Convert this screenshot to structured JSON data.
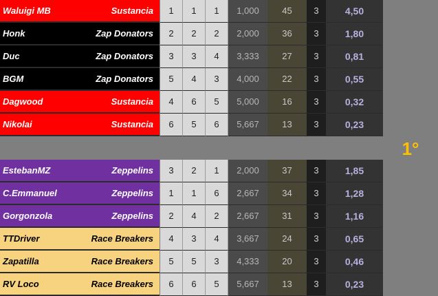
{
  "colors": {
    "sustancia": "#ff0000",
    "zap_donators": "#000000",
    "zeppelins": "#7030a0",
    "race_breakers": "#f7d27f",
    "place_accent": "#ffc000",
    "score_text": "#b9b0e0"
  },
  "place_label": "1°",
  "group_a": [
    {
      "driver": "Waluigi MB",
      "team": "Sustancia",
      "style": "red",
      "r1": "1",
      "r2": "1",
      "r3": "1",
      "avg": "1,000",
      "pts": "45",
      "cnt": "3",
      "score": "4,50"
    },
    {
      "driver": "Honk",
      "team": "Zap Donators",
      "style": "black",
      "r1": "2",
      "r2": "2",
      "r3": "2",
      "avg": "2,000",
      "pts": "36",
      "cnt": "3",
      "score": "1,80"
    },
    {
      "driver": "Duc",
      "team": "Zap Donators",
      "style": "black",
      "r1": "3",
      "r2": "3",
      "r3": "4",
      "avg": "3,333",
      "pts": "27",
      "cnt": "3",
      "score": "0,81"
    },
    {
      "driver": "BGM",
      "team": "Zap Donators",
      "style": "black",
      "r1": "5",
      "r2": "4",
      "r3": "3",
      "avg": "4,000",
      "pts": "22",
      "cnt": "3",
      "score": "0,55"
    },
    {
      "driver": "Dagwood",
      "team": "Sustancia",
      "style": "red",
      "r1": "4",
      "r2": "6",
      "r3": "5",
      "avg": "5,000",
      "pts": "16",
      "cnt": "3",
      "score": "0,32"
    },
    {
      "driver": "Nikolai",
      "team": "Sustancia",
      "style": "red",
      "r1": "6",
      "r2": "5",
      "r3": "6",
      "avg": "5,667",
      "pts": "13",
      "cnt": "3",
      "score": "0,23"
    }
  ],
  "group_b": [
    {
      "driver": "EstebanMZ",
      "team": "Zeppelins",
      "style": "purple",
      "r1": "3",
      "r2": "2",
      "r3": "1",
      "avg": "2,000",
      "pts": "37",
      "cnt": "3",
      "score": "1,85"
    },
    {
      "driver": "C.Emmanuel",
      "team": "Zeppelins",
      "style": "purple",
      "r1": "1",
      "r2": "1",
      "r3": "6",
      "avg": "2,667",
      "pts": "34",
      "cnt": "3",
      "score": "1,28"
    },
    {
      "driver": "Gorgonzola",
      "team": "Zeppelins",
      "style": "purple",
      "r1": "2",
      "r2": "4",
      "r3": "2",
      "avg": "2,667",
      "pts": "31",
      "cnt": "3",
      "score": "1,16"
    },
    {
      "driver": "TTDriver",
      "team": "Race Breakers",
      "style": "gold",
      "r1": "4",
      "r2": "3",
      "r3": "4",
      "avg": "3,667",
      "pts": "24",
      "cnt": "3",
      "score": "0,65"
    },
    {
      "driver": "Zapatilla",
      "team": "Race Breakers",
      "style": "gold",
      "r1": "5",
      "r2": "5",
      "r3": "3",
      "avg": "4,333",
      "pts": "20",
      "cnt": "3",
      "score": "0,46"
    },
    {
      "driver": "RV Loco",
      "team": "Race Breakers",
      "style": "gold",
      "r1": "6",
      "r2": "6",
      "r3": "5",
      "avg": "5,667",
      "pts": "13",
      "cnt": "3",
      "score": "0,23"
    }
  ]
}
